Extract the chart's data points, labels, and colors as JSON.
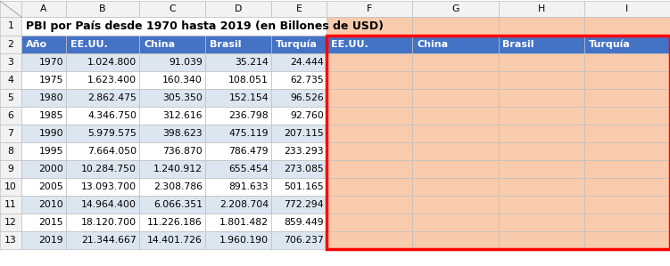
{
  "title": "PBI por País desde 1970 hasta 2019 (en Billones de USD)",
  "col_headers_left": [
    "Año",
    "EE.UU.",
    "China",
    "Brasil",
    "Turquía"
  ],
  "col_headers_right": [
    "EE.UU.",
    "China",
    "Brasil",
    "Turquía"
  ],
  "data": [
    [
      1970,
      "1.024.800",
      "91.039",
      "35.214",
      "24.444"
    ],
    [
      1975,
      "1.623.400",
      "160.340",
      "108.051",
      "62.735"
    ],
    [
      1980,
      "2.862.475",
      "305.350",
      "152.154",
      "96.526"
    ],
    [
      1985,
      "4.346.750",
      "312.616",
      "236.798",
      "92.760"
    ],
    [
      1990,
      "5.979.575",
      "398.623",
      "475.119",
      "207.115"
    ],
    [
      1995,
      "7.664.050",
      "736.870",
      "786.479",
      "233.293"
    ],
    [
      2000,
      "10.284.750",
      "1.240.912",
      "655.454",
      "273.085"
    ],
    [
      2005,
      "13.093.700",
      "2.308.786",
      "891.633",
      "501.165"
    ],
    [
      2010,
      "14.964.400",
      "6.066.351",
      "2.208.704",
      "772.294"
    ],
    [
      2015,
      "18.120.700",
      "11.226.186",
      "1.801.482",
      "859.449"
    ],
    [
      2019,
      "21.344.667",
      "14.401.726",
      "1.960.190",
      "706.237"
    ]
  ],
  "header_bg_blue": "#4472C4",
  "header_text_white": "#FFFFFF",
  "row_bg_light_blue": "#DCE6F1",
  "row_bg_white": "#FFFFFF",
  "right_section_bg": "#F8CBAD",
  "grid_color": "#BFBFBF",
  "letter_row_bg": "#F2F2F2",
  "rn_col_bg": "#F2F2F2",
  "title_fontsize": 9.0,
  "cell_fontsize": 7.8,
  "header_fontsize": 8.0
}
